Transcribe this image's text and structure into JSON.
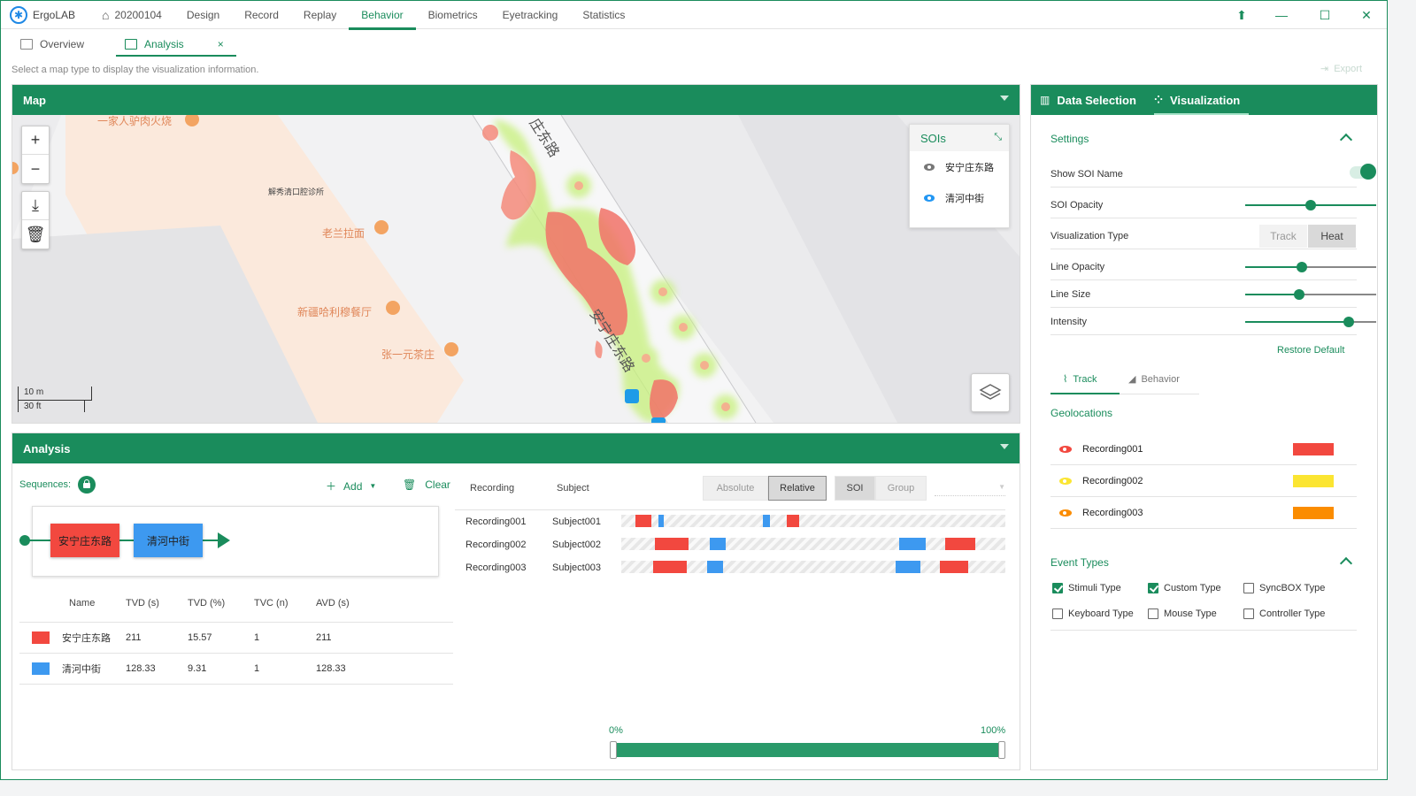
{
  "app": {
    "name": "ErgoLAB",
    "project": "20200104"
  },
  "nav": [
    "Design",
    "Record",
    "Replay",
    "Behavior",
    "Biometrics",
    "Eyetracking",
    "Statistics"
  ],
  "nav_active": "Behavior",
  "subtabs": {
    "overview": "Overview",
    "analysis": "Analysis",
    "close": "×"
  },
  "hint": "Select a map type to display the visualization information.",
  "export_label": "Export",
  "map_panel": {
    "title": "Map",
    "scale_m": "10 m",
    "scale_ft": "30 ft",
    "pois": [
      "一家人驴肉火烧",
      "解秀清口腔诊所",
      "老兰拉面",
      "新疆哈利穆餐厅",
      "张一元茶庄"
    ],
    "street_1": "安宁庄东路",
    "street_top": "庄东路",
    "sois_title": "SOIs",
    "sois": [
      {
        "name": "安宁庄东路",
        "eye_color": "#777777"
      },
      {
        "name": "清河中街",
        "eye_color": "#2196f3"
      }
    ]
  },
  "analysis": {
    "title": "Analysis",
    "sequences_label": "Sequences:",
    "add_label": "Add",
    "clear_label": "Clear",
    "sequence_nodes": [
      {
        "label": "安宁庄东路",
        "color": "#f2483f"
      },
      {
        "label": "清河中街",
        "color": "#3d99f0"
      }
    ],
    "table": {
      "headers": [
        "Name",
        "TVD (s)",
        "TVD (%)",
        "TVC (n)",
        "AVD (s)"
      ],
      "rows": [
        {
          "color": "#f2483f",
          "name": "安宁庄东路",
          "tvd_s": "211",
          "tvd_pct": "15.57",
          "tvc": "1",
          "avd": "211"
        },
        {
          "color": "#3d99f0",
          "name": "清河中街",
          "tvd_s": "128.33",
          "tvd_pct": "9.31",
          "tvc": "1",
          "avd": "128.33"
        }
      ]
    },
    "recording_header": "Recording",
    "subject_header": "Subject",
    "mode_buttons": [
      "Absolute",
      "Relative"
    ],
    "group_buttons": [
      "SOI",
      "Group"
    ],
    "recordings": [
      {
        "recording": "Recording001",
        "subject": "Subject001"
      },
      {
        "recording": "Recording002",
        "subject": "Subject002"
      },
      {
        "recording": "Recording003",
        "subject": "Subject003"
      }
    ],
    "range_start": "0%",
    "range_end": "100%"
  },
  "right_panel": {
    "tabs": [
      "Data Selection",
      "Visualization"
    ],
    "settings_title": "Settings",
    "settings": {
      "show_soi_name": "Show SOI Name",
      "soi_opacity": "SOI Opacity",
      "visualization_type": "Visualization Type",
      "vis_options": [
        "Track",
        "Heat"
      ],
      "line_opacity": "Line Opacity",
      "line_size": "Line Size",
      "intensity": "Intensity",
      "soi_opacity_value": 0.5,
      "line_opacity_value": 0.43,
      "line_size_value": 0.41,
      "intensity_value": 0.79
    },
    "restore_default": "Restore Default",
    "sub_tabs": [
      "Track",
      "Behavior"
    ],
    "geolocations_title": "Geolocations",
    "geolocations": [
      {
        "name": "Recording001",
        "color": "#f2483f"
      },
      {
        "name": "Recording002",
        "color": "#fbe532"
      },
      {
        "name": "Recording003",
        "color": "#fb8c00"
      }
    ],
    "event_types_title": "Event Types",
    "event_types": [
      {
        "label": "Stimuli Type",
        "checked": true
      },
      {
        "label": "Custom Type",
        "checked": true
      },
      {
        "label": "SyncBOX Type",
        "checked": false
      },
      {
        "label": "Keyboard Type",
        "checked": false
      },
      {
        "label": "Mouse Type",
        "checked": false
      },
      {
        "label": "Controller Type",
        "checked": false
      }
    ]
  },
  "colors": {
    "accent": "#1a8c5c",
    "soi_red": "#f2483f",
    "soi_blue": "#3d99f0"
  }
}
